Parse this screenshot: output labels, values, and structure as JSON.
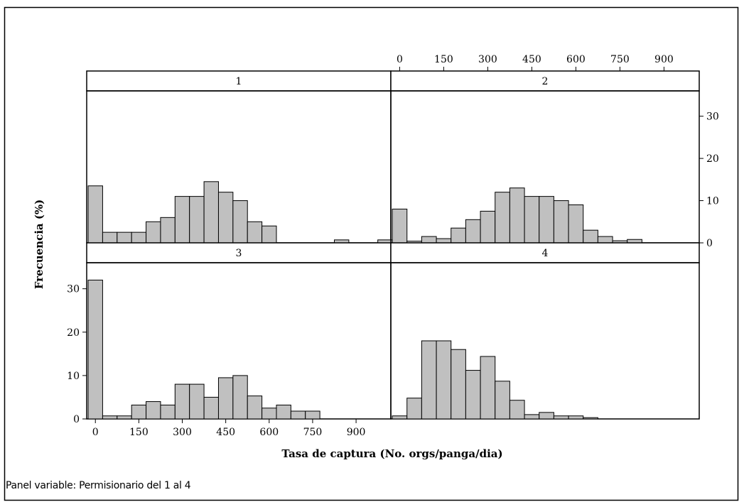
{
  "chart_data": {
    "type": "bar",
    "subtype": "paneled-histogram",
    "panel_variable_note": "Panel variable: Permisionario del 1 al 4",
    "xlabel": "Tasa de captura (No. orgs/panga/dia)",
    "ylabel": "Frecuencia (%)",
    "xlim": [
      -30,
      1020
    ],
    "ylim": [
      0,
      36
    ],
    "bin_width": 50,
    "bin_start": -25,
    "x_ticks": [
      "0",
      "150",
      "300",
      "450",
      "600",
      "750",
      "900"
    ],
    "x_tick_values": [
      0,
      150,
      300,
      450,
      600,
      750,
      900
    ],
    "y_ticks": [
      "0",
      "10",
      "20",
      "30"
    ],
    "y_tick_values": [
      0,
      10,
      20,
      30
    ],
    "grid": false,
    "panels": [
      {
        "label": "1",
        "values": [
          13.5,
          2.5,
          2.5,
          2.5,
          5,
          6,
          11,
          11,
          14.5,
          12,
          10,
          5,
          4,
          0,
          0,
          0,
          0,
          0.7,
          0,
          0,
          0.7,
          0,
          0
        ]
      },
      {
        "label": "2",
        "values": [
          8,
          0.4,
          1.5,
          1,
          3.5,
          5.5,
          7.5,
          12,
          13,
          11,
          11,
          10,
          9,
          3,
          1.5,
          0.5,
          0.8,
          0,
          0,
          0,
          0,
          0,
          0
        ]
      },
      {
        "label": "3",
        "values": [
          32,
          0.7,
          0.7,
          3.2,
          4,
          3.2,
          8,
          8,
          5,
          9.5,
          10,
          5.3,
          2.5,
          3.2,
          1.8,
          1.8,
          0,
          0,
          0,
          0,
          0,
          0,
          0.7
        ]
      },
      {
        "label": "4",
        "values": [
          0.7,
          4.8,
          18,
          18,
          16,
          11.2,
          14.4,
          8.7,
          4.3,
          1,
          1.5,
          0.7,
          0.7,
          0.3,
          0,
          0,
          0,
          0,
          0,
          0,
          0,
          0,
          0
        ]
      }
    ],
    "colors": {
      "bar_fill": "#c0c0c0",
      "bar_stroke": "#000000",
      "strip_fill": "#ffffff",
      "frame": "#000000"
    }
  }
}
